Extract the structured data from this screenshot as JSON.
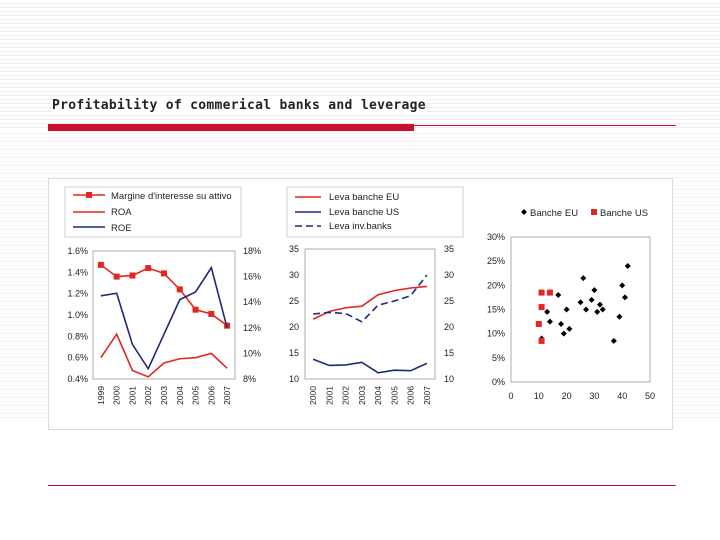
{
  "slide": {
    "title": "Profitability of commerical banks and leverage"
  },
  "colors": {
    "red": "#e3261f",
    "blue": "#1f2a7a",
    "black": "#000000",
    "accent": "#c8102e"
  },
  "chart_data": [
    {
      "type": "line",
      "categories": [
        "1999",
        "2000",
        "2001",
        "2002",
        "2003",
        "2004",
        "2005",
        "2006",
        "2007"
      ],
      "series": [
        {
          "name": "Margine d'interesse su attivo",
          "axis": "left",
          "marker": "square",
          "color": "#e3261f",
          "values": [
            1.47,
            1.36,
            1.37,
            1.44,
            1.39,
            1.24,
            1.05,
            1.01,
            0.9
          ]
        },
        {
          "name": "ROA",
          "axis": "left",
          "color": "#e3261f",
          "values": [
            0.6,
            0.82,
            0.48,
            0.42,
            0.55,
            0.59,
            0.6,
            0.64,
            0.5
          ]
        },
        {
          "name": "ROE",
          "axis": "right",
          "color": "#1f2a7a",
          "values": [
            14.5,
            14.7,
            10.7,
            8.8,
            11.5,
            14.2,
            14.8,
            16.7,
            12.0
          ]
        }
      ],
      "ylim_left": [
        0.4,
        1.6
      ],
      "yticks_left": [
        "0.4%",
        "0.6%",
        "0.8%",
        "1.0%",
        "1.2%",
        "1.4%",
        "1.6%"
      ],
      "ylim_right": [
        8,
        18
      ],
      "yticks_right": [
        "8%",
        "10%",
        "12%",
        "14%",
        "16%",
        "18%"
      ],
      "legend": "top"
    },
    {
      "type": "line",
      "categories": [
        "2000",
        "2001",
        "2002",
        "2003",
        "2004",
        "2005",
        "2006",
        "2007"
      ],
      "series": [
        {
          "name": "Leva banche EU",
          "color": "#e3261f",
          "style": "solid",
          "values": [
            21.5,
            23.0,
            23.7,
            24.0,
            26.2,
            27.0,
            27.5,
            27.8
          ]
        },
        {
          "name": "Leva banche US",
          "color": "#1f2a7a",
          "style": "solid",
          "values": [
            13.8,
            12.6,
            12.7,
            13.2,
            11.2,
            11.7,
            11.6,
            13.0
          ]
        },
        {
          "name": "Leva inv.banks",
          "color": "#1f2a7a",
          "style": "dashed",
          "values": [
            22.5,
            22.8,
            22.6,
            21.0,
            24.2,
            25.0,
            26.0,
            30.0
          ]
        }
      ],
      "ylim": [
        10,
        35
      ],
      "yticks": [
        "10",
        "15",
        "20",
        "25",
        "30",
        "35"
      ],
      "legend": "top"
    },
    {
      "type": "scatter",
      "series": [
        {
          "name": "Banche EU",
          "marker": "diamond",
          "color": "#000000",
          "points": [
            [
              11,
              9
            ],
            [
              13,
              14.5
            ],
            [
              14,
              12.5
            ],
            [
              17,
              18
            ],
            [
              18,
              12
            ],
            [
              19,
              10
            ],
            [
              20,
              15
            ],
            [
              21,
              11
            ],
            [
              25,
              16.5
            ],
            [
              26,
              21.5
            ],
            [
              27,
              15
            ],
            [
              29,
              17
            ],
            [
              30,
              19
            ],
            [
              31,
              14.5
            ],
            [
              32,
              16
            ],
            [
              33,
              15
            ],
            [
              37,
              8.5
            ],
            [
              39,
              13.5
            ],
            [
              40,
              20
            ],
            [
              41,
              17.5
            ],
            [
              42,
              24
            ]
          ]
        },
        {
          "name": "Banche US",
          "marker": "square",
          "color": "#e3261f",
          "points": [
            [
              10,
              12
            ],
            [
              11,
              18.5
            ],
            [
              11,
              15.5
            ],
            [
              11,
              8.5
            ],
            [
              14,
              18.5
            ]
          ]
        }
      ],
      "xlim": [
        0,
        50
      ],
      "xticks": [
        "0",
        "10",
        "20",
        "30",
        "40",
        "50"
      ],
      "ylim": [
        0,
        30
      ],
      "yticks": [
        "0%",
        "5%",
        "10%",
        "15%",
        "20%",
        "25%",
        "30%"
      ],
      "legend": "top"
    }
  ]
}
